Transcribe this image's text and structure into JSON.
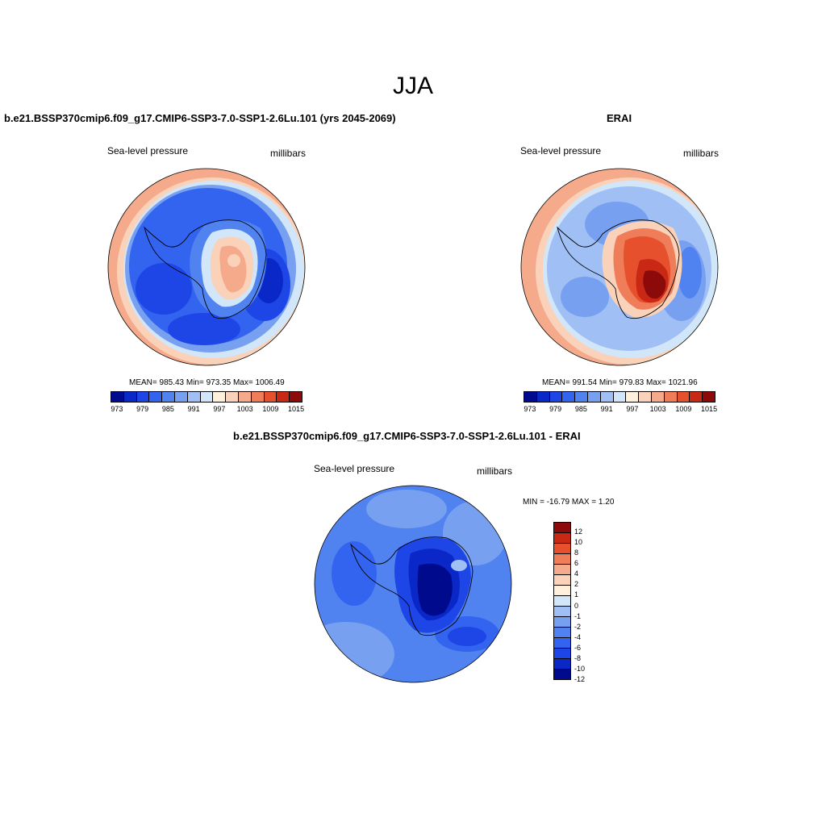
{
  "main_title": "JJA",
  "colors": {
    "palette": [
      "#000a8c",
      "#0a28c8",
      "#1e46e6",
      "#3264f0",
      "#5082f0",
      "#78a0f0",
      "#a0c0f5",
      "#d2e6fa",
      "#fff0dc",
      "#fad2b9",
      "#f5aa8c",
      "#f07d5a",
      "#e6502d",
      "#c82814",
      "#8c0a0a"
    ],
    "diff_palette": [
      "#000a8c",
      "#0a28c8",
      "#1e46e6",
      "#3264f0",
      "#5082f0",
      "#78a0f0",
      "#a0c0f5",
      "#d2e6fa",
      "#fff0dc",
      "#fad2b9",
      "#f5aa8c",
      "#f07d5a",
      "#e6502d",
      "#c82814",
      "#8c0a0a"
    ],
    "coastline": "#000000"
  },
  "panels": {
    "model": {
      "title": "b.e21.BSSP370cmip6.f09_g17.CMIP6-SSP3-7.0-SSP1-2.6Lu.101 (yrs 2045-2069)",
      "variable": "Sea-level pressure",
      "units": "millibars",
      "stats": "MEAN= 985.43  Min= 973.35  Max= 1006.49",
      "ticks": [
        "973",
        "979",
        "985",
        "991",
        "997",
        "1003",
        "1009",
        "1015"
      ]
    },
    "obs": {
      "title": "ERAI",
      "variable": "Sea-level pressure",
      "units": "millibars",
      "stats": "MEAN= 991.54  Min= 979.83  Max= 1021.96",
      "ticks": [
        "973",
        "979",
        "985",
        "991",
        "997",
        "1003",
        "1009",
        "1015"
      ]
    },
    "diff": {
      "title": "b.e21.BSSP370cmip6.f09_g17.CMIP6-SSP3-7.0-SSP1-2.6Lu.101 - ERAI",
      "variable": "Sea-level pressure",
      "units": "millibars",
      "stats": "MIN = -16.79 MAX =   1.20",
      "ticks": [
        "12",
        "10",
        "8",
        "6",
        "4",
        "2",
        "1",
        "0",
        "-1",
        "-2",
        "-4",
        "-6",
        "-8",
        "-10",
        "-12"
      ]
    }
  }
}
